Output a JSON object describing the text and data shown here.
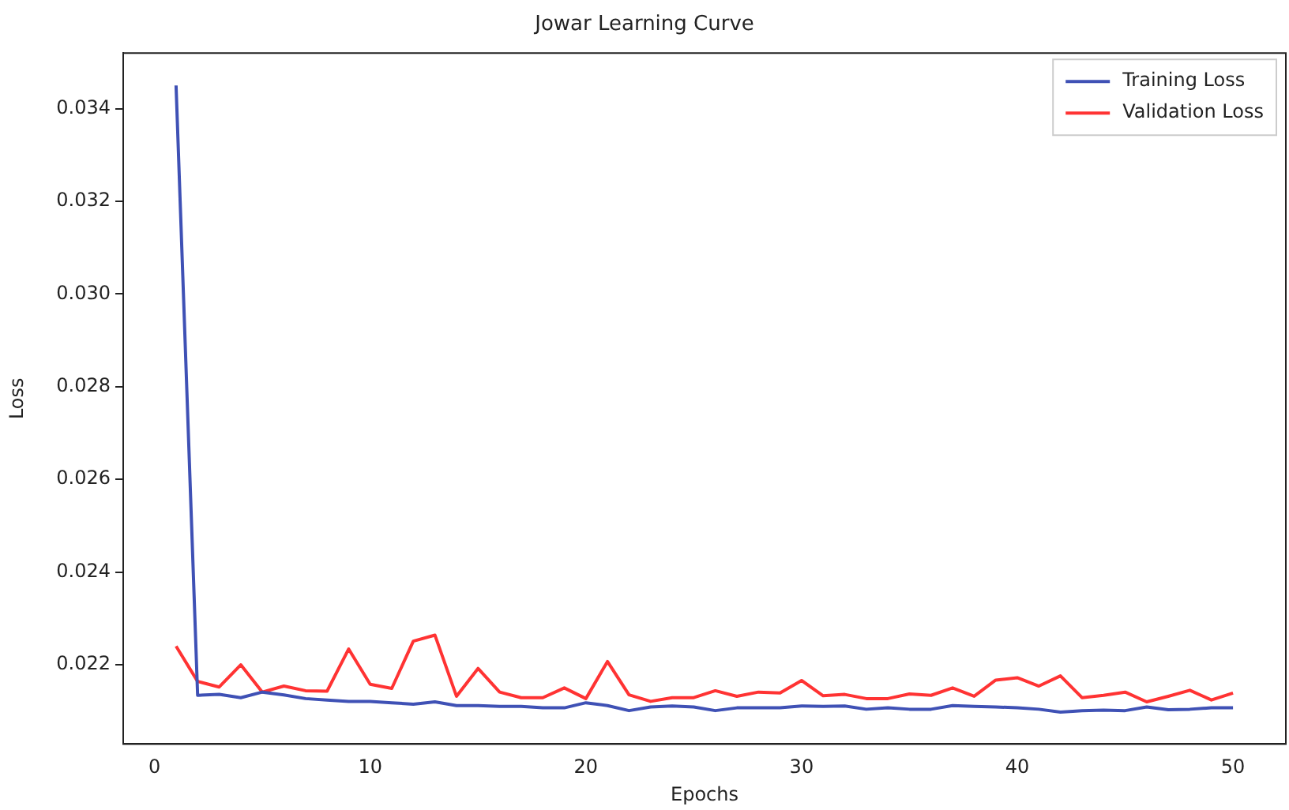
{
  "chart_data": {
    "type": "line",
    "title": "Jowar Learning Curve",
    "xlabel": "Epochs",
    "ylabel": "Loss",
    "x": [
      1,
      2,
      3,
      4,
      5,
      6,
      7,
      8,
      9,
      10,
      11,
      12,
      13,
      14,
      15,
      16,
      17,
      18,
      19,
      20,
      21,
      22,
      23,
      24,
      25,
      26,
      27,
      28,
      29,
      30,
      31,
      32,
      33,
      34,
      35,
      36,
      37,
      38,
      39,
      40,
      41,
      42,
      43,
      44,
      45,
      46,
      47,
      48,
      49,
      50
    ],
    "series": [
      {
        "name": "Training Loss",
        "color": "#3f51b5",
        "values": [
          0.0345,
          0.02134,
          0.02136,
          0.02129,
          0.02141,
          0.02135,
          0.02127,
          0.02124,
          0.02121,
          0.02121,
          0.02118,
          0.02115,
          0.0212,
          0.02112,
          0.02112,
          0.0211,
          0.0211,
          0.02107,
          0.02107,
          0.02118,
          0.02112,
          0.02101,
          0.02109,
          0.02111,
          0.02109,
          0.02101,
          0.02107,
          0.02107,
          0.02107,
          0.02111,
          0.0211,
          0.02111,
          0.02104,
          0.02107,
          0.02104,
          0.02104,
          0.02112,
          0.0211,
          0.02109,
          0.02107,
          0.02104,
          0.02098,
          0.02101,
          0.02102,
          0.02101,
          0.02109,
          0.02103,
          0.02104,
          0.02107,
          0.02107
        ]
      },
      {
        "name": "Validation Loss",
        "color": "#ff3333",
        "values": [
          0.0224,
          0.02164,
          0.02152,
          0.022,
          0.02141,
          0.02154,
          0.02144,
          0.02143,
          0.02234,
          0.02158,
          0.02149,
          0.02251,
          0.02264,
          0.02132,
          0.02192,
          0.02141,
          0.02129,
          0.02129,
          0.0215,
          0.02127,
          0.02207,
          0.02135,
          0.02121,
          0.02129,
          0.02129,
          0.02144,
          0.02132,
          0.02141,
          0.02139,
          0.02166,
          0.02133,
          0.02136,
          0.02127,
          0.02127,
          0.02137,
          0.02134,
          0.0215,
          0.02132,
          0.02167,
          0.02172,
          0.02154,
          0.02176,
          0.02129,
          0.02134,
          0.02141,
          0.0212,
          0.02132,
          0.02145,
          0.02124,
          0.02139
        ]
      }
    ],
    "xlim": [
      -1.45,
      52.45
    ],
    "xticks": [
      0,
      10,
      20,
      30,
      40,
      50
    ],
    "ylim": [
      0.02029,
      0.0352
    ],
    "yticks": [
      0.022,
      0.024,
      0.026,
      0.028,
      {
        "value": 0.03,
        "label": "0.030"
      },
      0.032,
      0.034
    ],
    "grid": false,
    "legend": "top right",
    "marker": "none",
    "line_style": "solid"
  }
}
